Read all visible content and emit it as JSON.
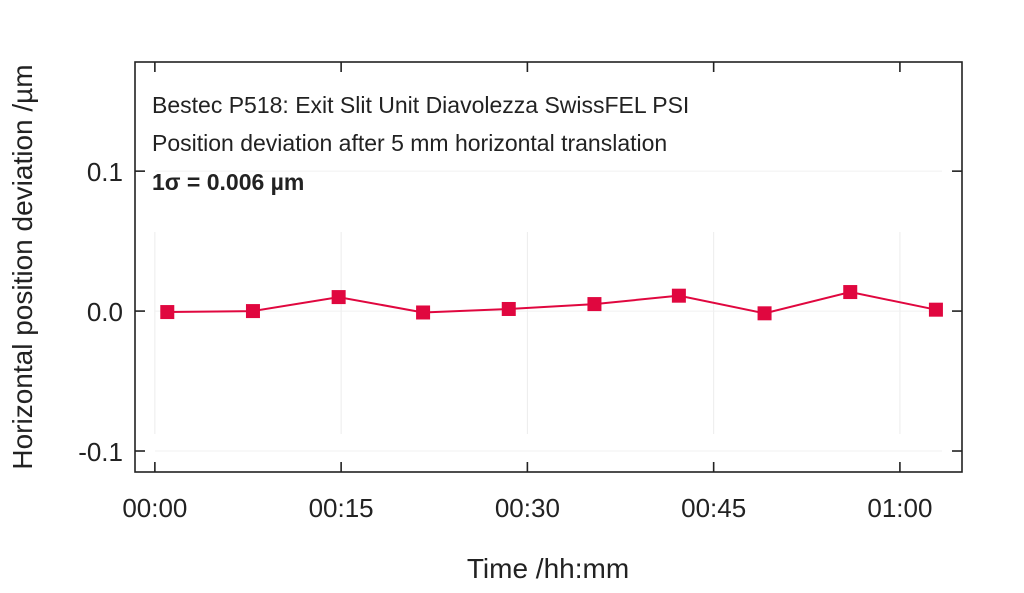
{
  "chart_data": {
    "type": "line",
    "annotations": [
      "Bestec P518: Exit Slit Unit Diavolezza SwissFEL PSI",
      "Position deviation after 5 mm horizontal translation",
      "1σ = 0.006 µm"
    ],
    "xlabel": "Time /hh:mm",
    "ylabel": "Horizontal position deviation /µm",
    "xlim_minutes": [
      -1.6,
      65
    ],
    "ylim": [
      -0.115,
      0.178
    ],
    "x_ticks": [
      {
        "v": 0,
        "label": "00:00"
      },
      {
        "v": 15,
        "label": "00:15"
      },
      {
        "v": 30,
        "label": "00:30"
      },
      {
        "v": 45,
        "label": "00:45"
      },
      {
        "v": 60,
        "label": "01:00"
      }
    ],
    "y_ticks": [
      {
        "v": 0.1,
        "label": "0.1"
      },
      {
        "v": 0.0,
        "label": "0.0"
      },
      {
        "v": -0.1,
        "label": "-0.1"
      }
    ],
    "grid": true,
    "series": [
      {
        "name": "Position deviation",
        "color": "#e0073f",
        "x_minutes": [
          1.0,
          7.9,
          14.8,
          21.6,
          28.5,
          35.4,
          42.2,
          49.1,
          56.0,
          62.9
        ],
        "y": [
          -0.0007,
          0.0,
          0.01,
          -0.001,
          0.0015,
          0.005,
          0.011,
          -0.0016,
          0.0136,
          0.001
        ]
      }
    ]
  }
}
